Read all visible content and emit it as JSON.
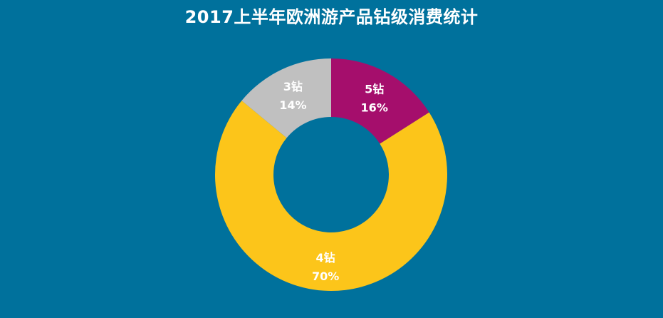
{
  "chart_data": {
    "type": "pie",
    "variant": "donut",
    "title": "2017上半年欧洲游产品钻级消费统计",
    "background_color": "#00719C",
    "categories": [
      "5钻",
      "4钻",
      "3钻"
    ],
    "values": [
      16,
      70,
      14
    ],
    "value_labels": [
      "16%",
      "70%",
      "14%"
    ],
    "colors": [
      "#A50E6C",
      "#FCC51A",
      "#C0C0C0"
    ],
    "legend": "none",
    "data_labels": "inside"
  }
}
